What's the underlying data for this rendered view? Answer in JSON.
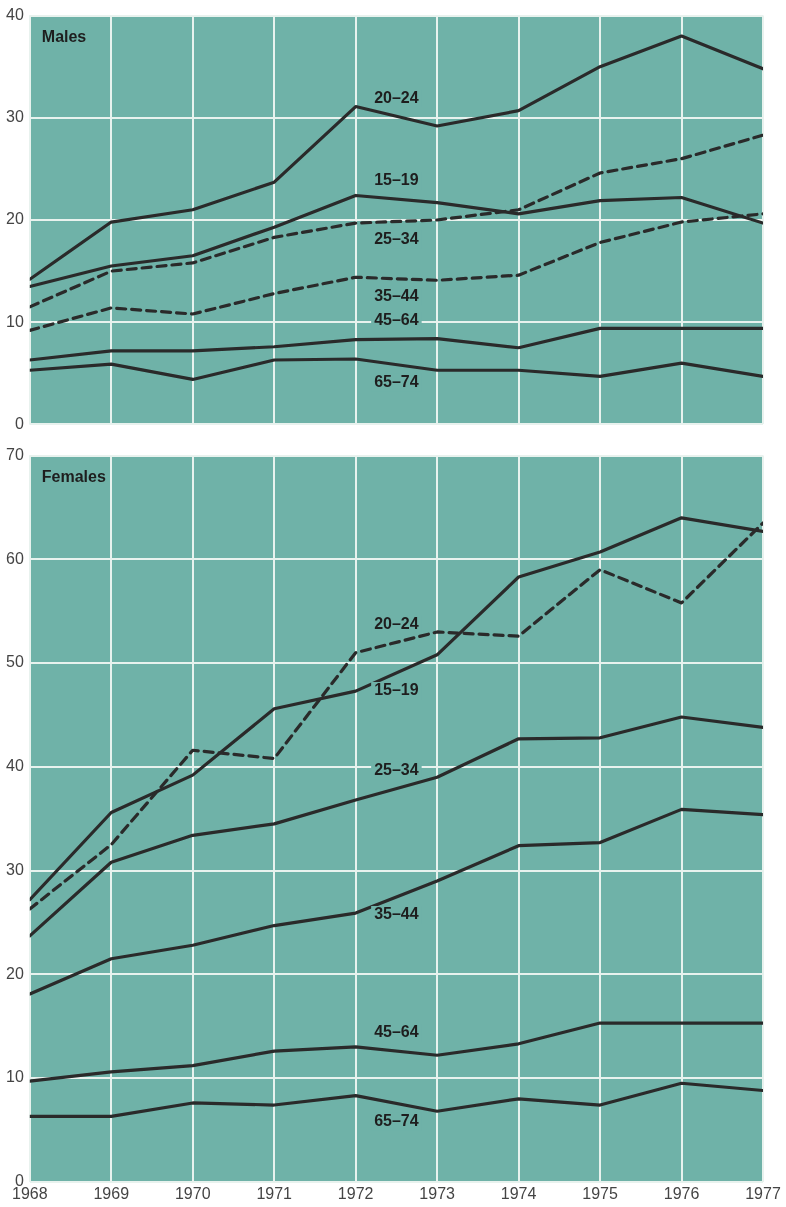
{
  "chart_data": [
    {
      "type": "line",
      "title": "Males",
      "x": [
        1968,
        1969,
        1970,
        1971,
        1972,
        1973,
        1974,
        1975,
        1976,
        1977
      ],
      "xlim": [
        1968,
        1977
      ],
      "xticks": [
        1968,
        1969,
        1970,
        1971,
        1972,
        1973,
        1974,
        1975,
        1976,
        1977
      ],
      "ylim": [
        0,
        40
      ],
      "yticks": [
        0,
        10,
        20,
        30,
        40
      ],
      "grid": true,
      "tick_labels": "y",
      "legend": false,
      "marker": "none",
      "series": [
        {
          "name": "20–24",
          "color": "#2a2a2a",
          "line_style": "solid",
          "values": [
            14.2,
            19.8,
            21,
            23.7,
            31.1,
            29.2,
            30.7,
            35,
            38,
            34.8
          ]
        },
        {
          "name": "15–19",
          "color": "#2a2a2a",
          "line_style": "solid",
          "values": [
            13.5,
            15.5,
            16.5,
            19.3,
            22.4,
            21.7,
            20.6,
            21.9,
            22.2,
            19.7
          ]
        },
        {
          "name": "25–34",
          "color": "#2a2a2a",
          "line_style": "dashed",
          "values": [
            11.5,
            15,
            15.8,
            18.3,
            19.7,
            20,
            21,
            24.6,
            26,
            28.3
          ]
        },
        {
          "name": "35–44",
          "color": "#2a2a2a",
          "line_style": "dashed",
          "values": [
            9.2,
            11.4,
            10.8,
            12.8,
            14.4,
            14.1,
            14.6,
            17.8,
            19.8,
            20.6
          ]
        },
        {
          "name": "45–64",
          "color": "#2a2a2a",
          "line_style": "solid",
          "values": [
            6.3,
            7.2,
            7.2,
            7.6,
            8.3,
            8.4,
            7.5,
            9.4,
            9.4,
            9.4
          ]
        },
        {
          "name": "65–74",
          "color": "#2a2a2a",
          "line_style": "solid",
          "values": [
            5.3,
            5.9,
            4.4,
            6.3,
            6.4,
            5.3,
            5.3,
            4.7,
            6,
            4.7
          ]
        }
      ]
    },
    {
      "type": "line",
      "title": "Females",
      "x": [
        1968,
        1969,
        1970,
        1971,
        1972,
        1973,
        1974,
        1975,
        1976,
        1977
      ],
      "xlim": [
        1968,
        1977
      ],
      "xticks": [
        1968,
        1969,
        1970,
        1971,
        1972,
        1973,
        1974,
        1975,
        1976,
        1977
      ],
      "ylim": [
        0,
        70
      ],
      "yticks": [
        0,
        10,
        20,
        30,
        40,
        50,
        60,
        70
      ],
      "grid": true,
      "legend": false,
      "marker": "none",
      "series": [
        {
          "name": "20–24",
          "color": "#2a2a2a",
          "line_style": "dashed",
          "values": [
            26.3,
            32.5,
            41.6,
            40.8,
            51,
            53,
            52.6,
            59,
            55.8,
            63.5
          ]
        },
        {
          "name": "15–19",
          "color": "#2a2a2a",
          "line_style": "solid",
          "values": [
            27.2,
            35.6,
            39.2,
            45.6,
            47.3,
            50.8,
            58.3,
            60.7,
            64,
            62.7
          ]
        },
        {
          "name": "25–34",
          "color": "#2a2a2a",
          "line_style": "solid",
          "values": [
            23.7,
            30.8,
            33.4,
            34.5,
            36.8,
            39,
            42.7,
            42.8,
            44.8,
            43.8
          ]
        },
        {
          "name": "35–44",
          "color": "#2a2a2a",
          "line_style": "solid",
          "values": [
            18.1,
            21.5,
            22.8,
            24.7,
            25.9,
            29,
            32.4,
            32.7,
            35.9,
            35.4
          ]
        },
        {
          "name": "45–64",
          "color": "#2a2a2a",
          "line_style": "solid",
          "values": [
            9.7,
            10.6,
            11.2,
            12.6,
            13,
            12.2,
            13.3,
            15.3,
            15.3,
            15.3
          ]
        },
        {
          "name": "65–74",
          "color": "#2a2a2a",
          "line_style": "solid",
          "values": [
            6.3,
            6.3,
            7.6,
            7.4,
            8.3,
            6.8,
            8,
            7.4,
            9.5,
            8.8
          ]
        }
      ]
    }
  ]
}
